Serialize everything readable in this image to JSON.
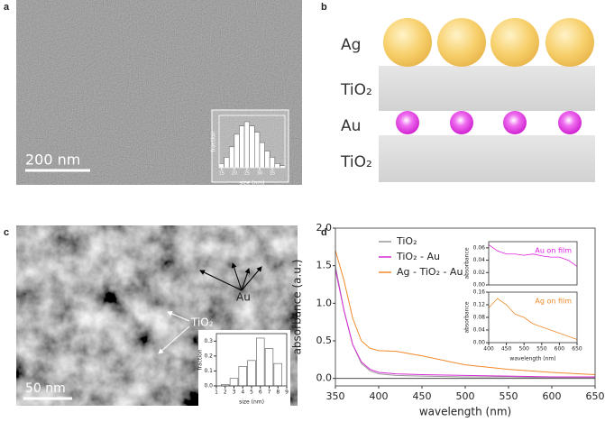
{
  "panel_a": {
    "label": "a",
    "scale_bar": "200 nm",
    "inset": {
      "type": "histogram",
      "xlabel": "size (nm)",
      "ylabel": "fraction",
      "bins": [
        14,
        16,
        18,
        20,
        22,
        24,
        26,
        28,
        30,
        32,
        34,
        36,
        38,
        40
      ],
      "values": [
        0.02,
        0.05,
        0.1,
        0.16,
        0.2,
        0.22,
        0.2,
        0.17,
        0.12,
        0.08,
        0.05,
        0.02,
        0.01
      ],
      "xticks": [
        15,
        20,
        25,
        30,
        35
      ],
      "ylim": [
        0,
        0.25
      ]
    }
  },
  "panel_b": {
    "label": "b",
    "layers": [
      "Ag",
      "TiO₂",
      "Au",
      "TiO₂"
    ]
  },
  "panel_c": {
    "label": "c",
    "scale_bar": "50 nm",
    "annotations": [
      "TiO₂",
      "Au"
    ],
    "inset": {
      "type": "bar",
      "xlabel": "size (nm)",
      "ylabel": "fraction",
      "x": [
        2,
        3,
        4,
        5,
        6,
        7,
        8
      ],
      "values": [
        0.01,
        0.05,
        0.13,
        0.17,
        0.32,
        0.25,
        0.15
      ],
      "xlim": [
        1,
        9
      ],
      "xticks": [
        1,
        2,
        3,
        4,
        5,
        6,
        7,
        8,
        9
      ],
      "ylim": [
        0,
        0.35
      ],
      "yticks": [
        {
          "value": 0,
          "label": "0.0"
        },
        0.1,
        0.2,
        0.3
      ]
    }
  },
  "panel_d": {
    "label": "d",
    "chart_data": {
      "type": "line",
      "xlabel": "wavelength (nm)",
      "ylabel": "absorbance (a.u.)",
      "x": [
        350,
        360,
        370,
        380,
        390,
        400,
        420,
        450,
        500,
        550,
        600,
        650
      ],
      "series": [
        {
          "name": "TiO₂",
          "color": "#999999",
          "values": [
            1.5,
            0.9,
            0.45,
            0.2,
            0.1,
            0.06,
            0.04,
            0.03,
            0.02,
            0.02,
            0.01,
            0.01
          ]
        },
        {
          "name": "TiO₂ - Au",
          "color": "#d62ad6",
          "values": [
            1.45,
            0.9,
            0.45,
            0.22,
            0.12,
            0.08,
            0.06,
            0.05,
            0.04,
            0.03,
            0.02,
            0.02
          ]
        },
        {
          "name": "Ag - TiO₂ - Au",
          "color": "#f08a2a",
          "values": [
            1.7,
            1.3,
            0.8,
            0.5,
            0.4,
            0.37,
            0.36,
            0.3,
            0.18,
            0.12,
            0.08,
            0.05
          ]
        }
      ],
      "xlim": [
        350,
        650
      ],
      "xticks": [
        350,
        400,
        450,
        500,
        550,
        600,
        650
      ],
      "ylim": [
        -0.1,
        2.0
      ],
      "yticks": [
        {
          "value": 0,
          "label": "0.0"
        },
        0.5,
        {
          "value": 1,
          "label": "1.0"
        },
        1.5,
        {
          "value": 2,
          "label": "2.0"
        }
      ]
    },
    "insets": [
      {
        "type": "line",
        "ylabel": "absorbance",
        "x": [
          400,
          425,
          450,
          475,
          500,
          525,
          550,
          575,
          600,
          625,
          650
        ],
        "series": [
          {
            "name": "Au on film",
            "color": "#e020e0",
            "values": [
              0.065,
              0.055,
              0.05,
              0.05,
              0.048,
              0.05,
              0.047,
              0.045,
              0.045,
              0.04,
              0.03
            ]
          }
        ],
        "xlim": [
          400,
          650
        ],
        "ylim": [
          0,
          0.07
        ],
        "yticks": [
          {
            "value": 0,
            "label": "0.00"
          },
          0.02,
          0.04,
          0.06
        ]
      },
      {
        "type": "line",
        "ylabel": "absorbance",
        "xlabel": "wavelength (nm)",
        "x": [
          400,
          425,
          450,
          475,
          500,
          525,
          550,
          575,
          600,
          625,
          650
        ],
        "series": [
          {
            "name": "Ag on film",
            "color": "#f08a2a",
            "values": [
              0.11,
              0.14,
              0.12,
              0.09,
              0.08,
              0.06,
              0.05,
              0.04,
              0.03,
              0.02,
              0.01
            ]
          }
        ],
        "xlim": [
          400,
          650
        ],
        "xticks": [
          400,
          450,
          500,
          550,
          600,
          650
        ],
        "ylim": [
          0,
          0.16
        ],
        "yticks": [
          {
            "value": 0,
            "label": "0.00"
          },
          0.04,
          0.08,
          0.12,
          0.16
        ]
      }
    ]
  }
}
